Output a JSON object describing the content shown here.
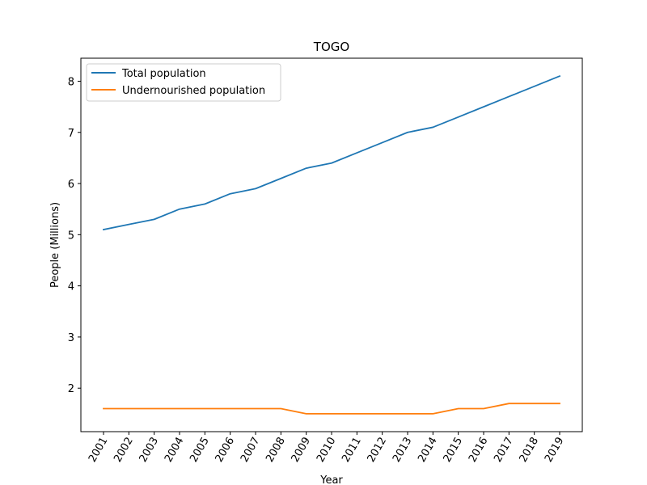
{
  "chart_data": {
    "type": "line",
    "title": "TOGO",
    "xlabel": "Year",
    "ylabel": "People (Millions)",
    "x": [
      "2001",
      "2002",
      "2003",
      "2004",
      "2005",
      "2006",
      "2007",
      "2008",
      "2009",
      "2010",
      "2011",
      "2012",
      "2013",
      "2014",
      "2015",
      "2016",
      "2017",
      "2018",
      "2019"
    ],
    "y_ticks": [
      2,
      3,
      4,
      5,
      6,
      7,
      8
    ],
    "ylim": [
      1.15,
      8.45
    ],
    "grid": false,
    "legend_position": "top-left",
    "series": [
      {
        "name": "Total population",
        "color": "#1f77b4",
        "values": [
          5.1,
          5.2,
          5.3,
          5.5,
          5.6,
          5.8,
          5.9,
          6.1,
          6.3,
          6.4,
          6.6,
          6.8,
          7.0,
          7.1,
          7.3,
          7.5,
          7.7,
          7.9,
          8.1
        ]
      },
      {
        "name": "Undernourished population",
        "color": "#ff7f0e",
        "values": [
          1.6,
          1.6,
          1.6,
          1.6,
          1.6,
          1.6,
          1.6,
          1.6,
          1.5,
          1.5,
          1.5,
          1.5,
          1.5,
          1.5,
          1.6,
          1.6,
          1.7,
          1.7,
          1.7
        ]
      }
    ]
  }
}
